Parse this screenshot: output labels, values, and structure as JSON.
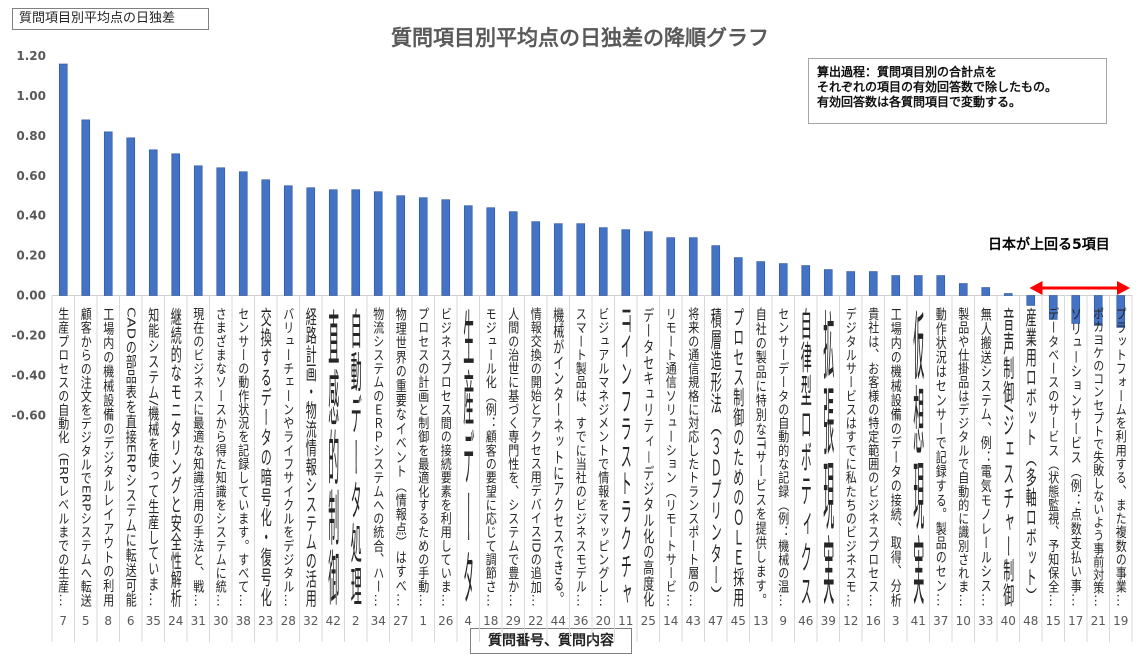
{
  "chart_data": {
    "type": "bar",
    "label_box": "質問項目別平均点の日独差",
    "title": "質問項目別平均点の日独差の降順グラフ",
    "xlabel": "質問番号、質問内容",
    "ylabel": "",
    "ylim": [
      -0.6,
      1.2
    ],
    "yticks": [
      "1.20",
      "1.00",
      "0.80",
      "0.60",
      "0.40",
      "0.20",
      "0.00",
      "-0.20",
      "-0.40",
      "-0.60"
    ],
    "ytick_values": [
      1.2,
      1.0,
      0.8,
      0.6,
      0.4,
      0.2,
      0.0,
      -0.2,
      -0.4,
      -0.6
    ],
    "grid": false,
    "bar_color": "#4472c4",
    "note": "算出過程：質問項目別の合計点を\nそれぞれの項目の有効回答数で除したもの。\n有効回答数は各質問項目で変動する。",
    "annotation": "日本が上回る5項目",
    "annotation_color": "#ff0000",
    "categories": [
      {
        "num": "7",
        "name": "生産プロセスの自動化（ERPレベルまでの生産…",
        "value": 1.16
      },
      {
        "num": "5",
        "name": "顧客からの注文をデジタルでERPシステムへ転送",
        "value": 0.88
      },
      {
        "num": "8",
        "name": "工場内の機械設備のデジタルレイアウトの利用",
        "value": 0.82
      },
      {
        "num": "6",
        "name": "CADの部品表を直接ERPシステムに転送可能",
        "value": 0.79
      },
      {
        "num": "35",
        "name": "知能システム/機械を使って生産していま…",
        "value": 0.73
      },
      {
        "num": "24",
        "name": "継続的なモニタリングと安全性解析",
        "value": 0.71
      },
      {
        "num": "31",
        "name": "現在のビジネスに最適な知識活用の手法と、戦…",
        "value": 0.65
      },
      {
        "num": "30",
        "name": "さまざまなソースから得た知識をシステムに統…",
        "value": 0.64
      },
      {
        "num": "38",
        "name": "センサーの動作状況を記録しています。すべて…",
        "value": 0.62
      },
      {
        "num": "23",
        "name": "交換するデータの暗号化・復号化",
        "value": 0.58
      },
      {
        "num": "28",
        "name": "バリューチェーンやライフサイクルをデジタル…",
        "value": 0.55
      },
      {
        "num": "32",
        "name": "経路計画・物流情報システムの活用",
        "value": 0.54
      },
      {
        "num": "42",
        "name": "直感的制御",
        "value": 0.53
      },
      {
        "num": "2",
        "name": "自動データ処理",
        "value": 0.53
      },
      {
        "num": "34",
        "name": "物流システムのＥＲＰシステムへの統合、ハー…",
        "value": 0.52
      },
      {
        "num": "27",
        "name": "物理世界の重要なイベント（情報点）はすべ…",
        "value": 0.5
      },
      {
        "num": "1",
        "name": "プロセスの計画と制御を最適化するための手動…",
        "value": 0.49
      },
      {
        "num": "26",
        "name": "ビジネスプロセス間の接続要素を利用していま…",
        "value": 0.48
      },
      {
        "num": "4",
        "name": "生産データ",
        "value": 0.45
      },
      {
        "num": "18",
        "name": "モジュール化（例：顧客の要望に応じて調節さ…",
        "value": 0.44
      },
      {
        "num": "29",
        "name": "人間の治世に基づく専門性を、システムで豊か…",
        "value": 0.42
      },
      {
        "num": "22",
        "name": "情報交換の開始とアクセス用デバイスIDの追加…",
        "value": 0.37
      },
      {
        "num": "44",
        "name": "機械がインターネットにアクセスできる。",
        "value": 0.36
      },
      {
        "num": "36",
        "name": "スマート製品は、すでに当社のビジネスモデル…",
        "value": 0.36
      },
      {
        "num": "20",
        "name": "ビジュアルマネジメントで情報をマッピングし…",
        "value": 0.34
      },
      {
        "num": "11",
        "name": "ITインフラストラクチャ",
        "value": 0.33
      },
      {
        "num": "25",
        "name": "データセキュリティ－デジタル化の高度化",
        "value": 0.32
      },
      {
        "num": "14",
        "name": "リモート通信ソリューション（リモートサービ…",
        "value": 0.29
      },
      {
        "num": "43",
        "name": "将来の通信規格に対応したトランスポート層の…",
        "value": 0.29
      },
      {
        "num": "47",
        "name": "積層造形法（３Ｄプリンター）",
        "value": 0.25
      },
      {
        "num": "45",
        "name": "プロセス制御のためのＯＬＥ採用",
        "value": 0.19
      },
      {
        "num": "13",
        "name": "自社の製品に特別なITサービスを提供します。",
        "value": 0.17
      },
      {
        "num": "9",
        "name": "センサーデータの自動的な記録（例：機械の温…",
        "value": 0.16
      },
      {
        "num": "46",
        "name": "自律型ロボティクス",
        "value": 0.15
      },
      {
        "num": "39",
        "name": "拡張現実",
        "value": 0.13
      },
      {
        "num": "12",
        "name": "デジタルサービスはすでに私たちのビジネスモ…",
        "value": 0.12
      },
      {
        "num": "16",
        "name": "貴社は、お客様の特定範囲のビジネスプロセス…",
        "value": 0.12
      },
      {
        "num": "3",
        "name": "工場内の機械設備のデータの接続、取得、分析",
        "value": 0.1
      },
      {
        "num": "41",
        "name": "仮想現実",
        "value": 0.1
      },
      {
        "num": "37",
        "name": "動作状況はセンサーで記録する。製品のセン…",
        "value": 0.1
      },
      {
        "num": "10",
        "name": "製品や仕掛品はデジタルで自動的に識別されま…",
        "value": 0.06
      },
      {
        "num": "33",
        "name": "無人搬送システム、例：電気モノレールシス…",
        "value": 0.04
      },
      {
        "num": "40",
        "name": "音声制御/ジェスチャー制御",
        "value": 0.01
      },
      {
        "num": "48",
        "name": "産業用ロボット（多軸ロボット）",
        "value": -0.05
      },
      {
        "num": "15",
        "name": "データベースのサービス（状態監視、予知保全…",
        "value": -0.12
      },
      {
        "num": "17",
        "name": "ソリューションサービス（例：点数支払い事…",
        "value": -0.14
      },
      {
        "num": "21",
        "name": "ポカヨケのコンセプトで失敗しないよう事前対策…",
        "value": -0.15
      },
      {
        "num": "19",
        "name": "プラットフォームを利用する、また複数の事業…",
        "value": -0.16
      }
    ]
  }
}
